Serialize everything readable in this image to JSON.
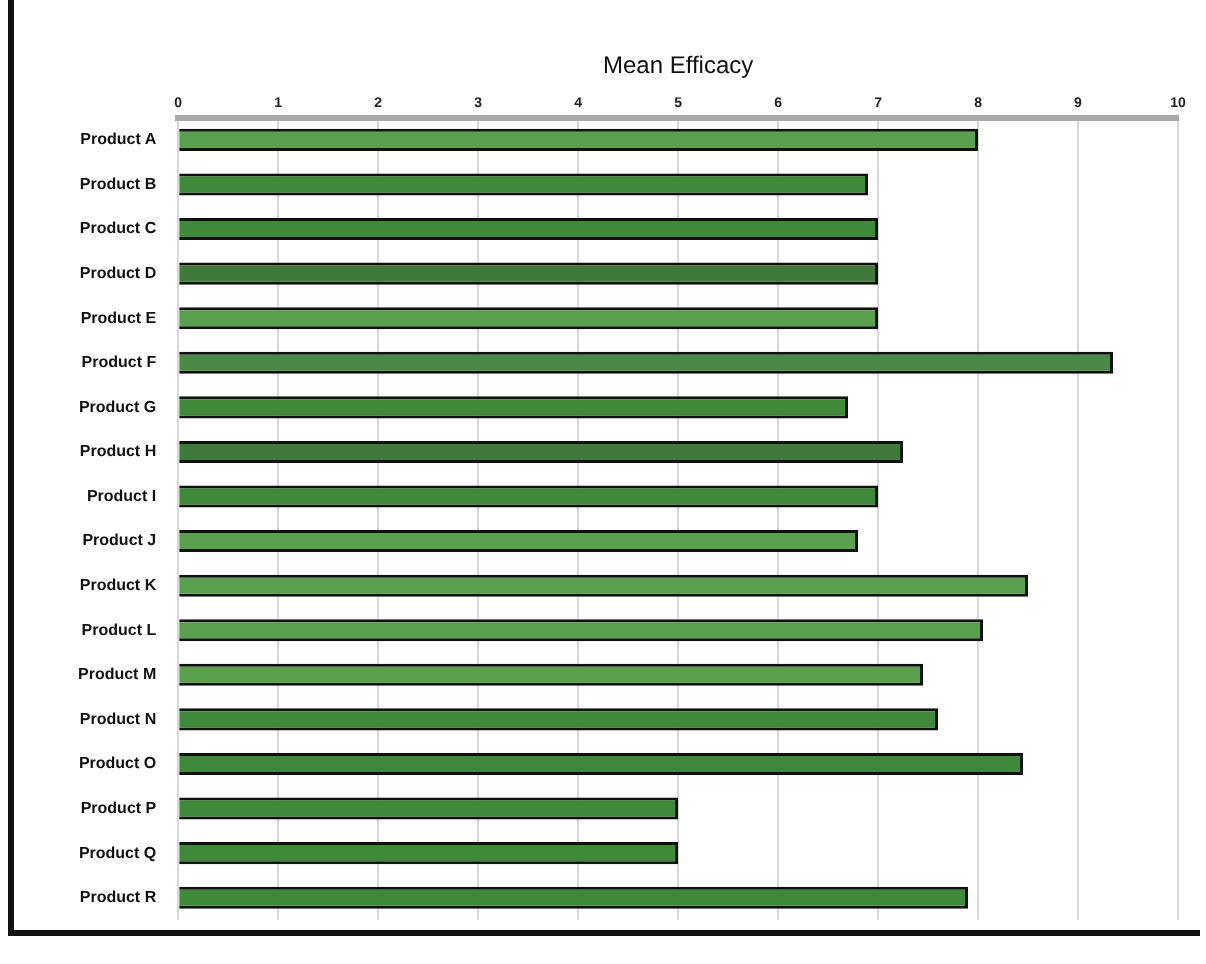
{
  "chart_data": {
    "type": "bar",
    "orientation": "horizontal",
    "xlabel": "Mean Efficacy",
    "categories": [
      "Product A",
      "Product B",
      "Product C",
      "Product D",
      "Product E",
      "Product F",
      "Product G",
      "Product H",
      "Product I",
      "Product J",
      "Product K",
      "Product L",
      "Product M",
      "Product N",
      "Product O",
      "Product P",
      "Product Q",
      "Product R"
    ],
    "values": [
      8.0,
      6.9,
      7.0,
      7.0,
      7.0,
      9.35,
      6.7,
      7.25,
      7.0,
      6.8,
      8.5,
      8.05,
      7.45,
      7.6,
      8.45,
      5.0,
      5.0,
      7.9
    ],
    "colors": [
      "#5aa04e",
      "#3f8a3a",
      "#3f8a3a",
      "#3f7a3a",
      "#5aa04e",
      "#4a8a44",
      "#3f8a3a",
      "#3f7a3a",
      "#3f8a3a",
      "#5aa04e",
      "#5aa04e",
      "#5aa04e",
      "#5aa04e",
      "#3f8a3a",
      "#3f8a3a",
      "#3f8a3a",
      "#3f8a3a",
      "#3f8a3a"
    ],
    "xlim": [
      0,
      10
    ],
    "xticks": [
      0,
      1,
      2,
      3,
      4,
      5,
      6,
      7,
      8,
      9,
      10
    ],
    "grid": "x",
    "legend": false
  }
}
